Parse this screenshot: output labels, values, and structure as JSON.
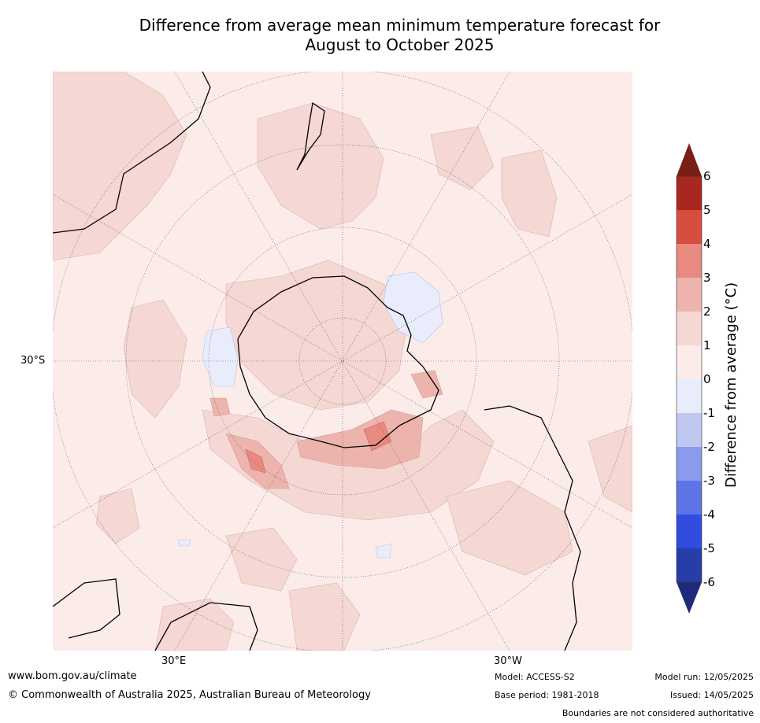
{
  "title": {
    "line1": "Difference from average mean minimum temperature forecast for",
    "line2": "August to October 2025"
  },
  "axis_labels": {
    "lat_30s": "30°S",
    "lon_30e": "30°E",
    "lon_30w": "30°W"
  },
  "colorbar": {
    "title": "Difference from average (°C)",
    "ticks": [
      "6",
      "5",
      "4",
      "3",
      "2",
      "1",
      "0",
      "-1",
      "-2",
      "-3",
      "-4",
      "-5",
      "-6"
    ],
    "colors": {
      "above_6": "#7a1f17",
      "5_6": "#a8271f",
      "4_5": "#d74d40",
      "3_4": "#e88a80",
      "2_3": "#ecb4ad",
      "1_2": "#f5d7d3",
      "0_1": "#fbecea",
      "m1_0": "#e9edfb",
      "m2_m1": "#c0c8f2",
      "m3_m2": "#8a9aec",
      "m4_m3": "#5f74e4",
      "m5_m4": "#304ddd",
      "m6_m5": "#273da7",
      "below_m6": "#1f2a7a"
    }
  },
  "footer": {
    "url": "www.bom.gov.au/climate",
    "copyright": "© Commonwealth of Australia 2025, Australian Bureau of Meteorology",
    "model": "Model: ACCESS-S2",
    "base_period": "Base period: 1981-2018",
    "model_run": "Model run: 12/05/2025",
    "issued": "Issued: 14/05/2025",
    "disclaimer": "Boundaries are not considered authoritative"
  }
}
